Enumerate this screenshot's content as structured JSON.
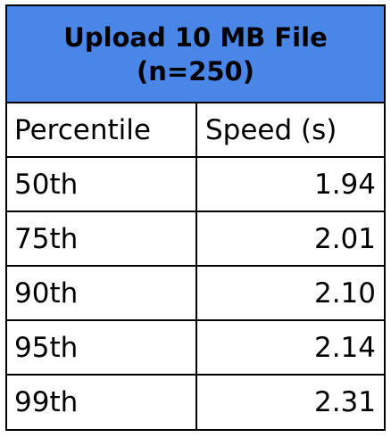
{
  "title": {
    "line1": "Upload 10 MB File",
    "line2": "(n=250)",
    "background_color": "#4a86e8"
  },
  "columns": [
    "Percentile",
    "Speed (s)"
  ],
  "rows": [
    {
      "percentile": "50th",
      "speed": "1.94"
    },
    {
      "percentile": "75th",
      "speed": "2.01"
    },
    {
      "percentile": "90th",
      "speed": "2.10"
    },
    {
      "percentile": "95th",
      "speed": "2.14"
    },
    {
      "percentile": "99th",
      "speed": "2.31"
    }
  ]
}
